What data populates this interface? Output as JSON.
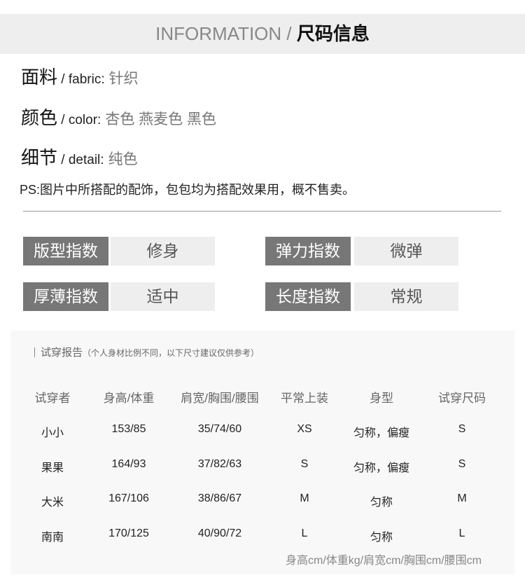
{
  "header": {
    "en": "INFORMATION /",
    "cn": "尺码信息"
  },
  "attributes": [
    {
      "label": "面料",
      "sub": "/ fabric:",
      "value": "针织"
    },
    {
      "label": "颜色",
      "sub": "/ color:",
      "value": "杏色 燕麦色 黑色"
    },
    {
      "label": "细节",
      "sub": "/ detail:",
      "value": "纯色"
    }
  ],
  "ps": "PS:图片中所搭配的配饰，包包均为搭配效果用，概不售卖。",
  "indices": [
    {
      "label": "版型指数",
      "value": "修身"
    },
    {
      "label": "弹力指数",
      "value": "微弹"
    },
    {
      "label": "厚薄指数",
      "value": "适中"
    },
    {
      "label": "长度指数",
      "value": "常规"
    }
  ],
  "fit_report": {
    "title": "试穿报告",
    "subtitle": "（个人身材比例不同，以下尺寸建议仅供参考）",
    "columns": [
      "试穿者",
      "身高/体重",
      "肩宽/胸围/腰围",
      "平常上装",
      "身型",
      "试穿尺码"
    ],
    "rows": [
      [
        "小小",
        "153/85",
        "35/74/60",
        "XS",
        "匀称，偏瘦",
        "S"
      ],
      [
        "果果",
        "164/93",
        "37/82/63",
        "S",
        "匀称，偏瘦",
        "S"
      ],
      [
        "大米",
        "167/106",
        "38/86/67",
        "M",
        "匀称",
        "M"
      ],
      [
        "南南",
        "170/125",
        "40/90/72",
        "L",
        "匀称",
        "L"
      ]
    ],
    "note": "身高cm/体重kg/肩宽cm/胸围cm/腰围cm"
  }
}
